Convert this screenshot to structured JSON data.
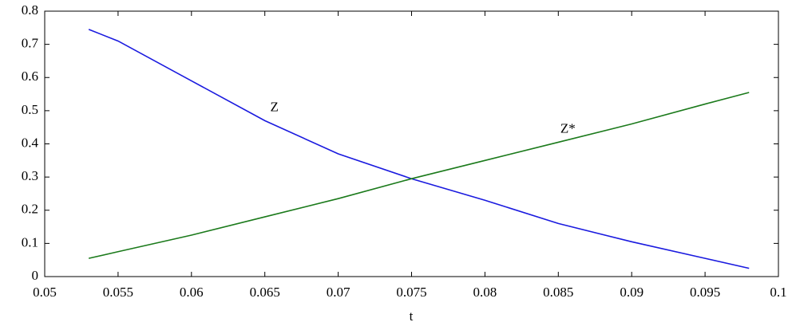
{
  "chart_data": {
    "type": "line",
    "x_label": "t",
    "x": [
      0.053,
      0.055,
      0.06,
      0.065,
      0.07,
      0.075,
      0.08,
      0.085,
      0.09,
      0.095,
      0.098
    ],
    "series": [
      {
        "name": "Z",
        "color": "#1a1adf",
        "values": [
          0.745,
          0.71,
          0.59,
          0.47,
          0.37,
          0.295,
          0.23,
          0.16,
          0.105,
          0.055,
          0.025
        ]
      },
      {
        "name": "Z*",
        "color": "#1b7a1b",
        "values": [
          0.055,
          0.075,
          0.125,
          0.18,
          0.235,
          0.295,
          0.35,
          0.405,
          0.46,
          0.52,
          0.555
        ]
      }
    ],
    "xlim": [
      0.05,
      0.1
    ],
    "xticks": [
      0.05,
      0.055,
      0.06,
      0.065,
      0.07,
      0.075,
      0.08,
      0.085,
      0.09,
      0.095,
      0.1
    ],
    "ylim": [
      0,
      0.8
    ],
    "yticks": [
      0,
      0.1,
      0.2,
      0.3,
      0.4,
      0.5,
      0.6,
      0.7,
      0.8
    ]
  }
}
